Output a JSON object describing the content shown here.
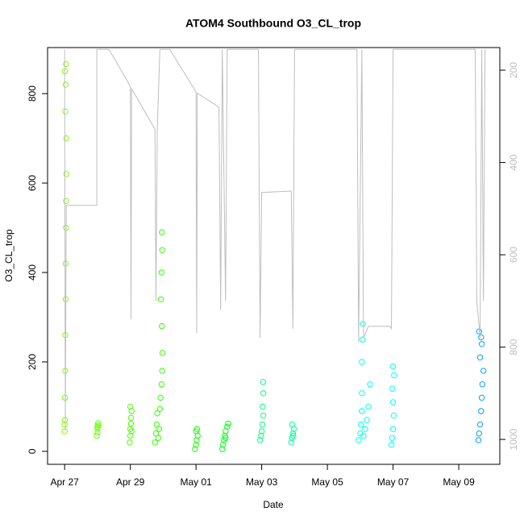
{
  "chart_data": {
    "type": "scatter",
    "title": "ATOM4 Southbound O3_CL_trop",
    "x_label": "Date",
    "y_label": "O3_CL_trop",
    "xlim": [
      -0.52,
      13.25
    ],
    "xticks": [
      {
        "value": 0,
        "label": "Apr 27"
      },
      {
        "value": 2,
        "label": "Apr 29"
      },
      {
        "value": 4,
        "label": "May 01"
      },
      {
        "value": 6,
        "label": "May 03"
      },
      {
        "value": 8,
        "label": "May 05"
      },
      {
        "value": 10,
        "label": "May 07"
      },
      {
        "value": 12,
        "label": "May 09"
      }
    ],
    "ylim": [
      -29,
      903
    ],
    "yticks": [
      0,
      200,
      400,
      600,
      800
    ],
    "y2lim": [
      1054,
      151
    ],
    "y2ticks": [
      200,
      400,
      600,
      800,
      1000
    ],
    "series": [
      {
        "color": "#80FF00",
        "x": [
          0,
          0,
          0.01,
          0.01,
          0.02,
          0.02,
          0.03,
          0.03,
          0.04,
          0.04,
          0.05,
          0.05,
          0.02,
          0.03,
          0.01,
          0.04
        ],
        "values": [
          45,
          60,
          70,
          120,
          180,
          260,
          340,
          420,
          500,
          560,
          620,
          700,
          760,
          820,
          850,
          866
        ]
      },
      {
        "color": "#66FF00",
        "x": [
          0.98,
          1.0,
          1.0,
          1.02,
          1.02,
          1.0
        ],
        "values": [
          35,
          42,
          50,
          58,
          63,
          55
        ]
      },
      {
        "color": "#4DFF00",
        "x": [
          1.98,
          2.0,
          2.0,
          2.02,
          2.02,
          2.04,
          2.0,
          2.04
        ],
        "values": [
          20,
          35,
          50,
          62,
          75,
          90,
          100,
          45
        ]
      },
      {
        "color": "#33FF00",
        "x": [
          2.75,
          2.78,
          2.8,
          2.82,
          2.85,
          2.88,
          2.9,
          2.92,
          2.95,
          2.97,
          2.98,
          2.96,
          2.93,
          2.95,
          2.97,
          2.96
        ],
        "values": [
          20,
          40,
          60,
          85,
          30,
          50,
          95,
          120,
          150,
          180,
          220,
          280,
          340,
          400,
          450,
          490
        ]
      },
      {
        "color": "#1AFF00",
        "x": [
          3.97,
          4.0,
          4.02,
          4.05,
          4.0,
          4.03
        ],
        "values": [
          5,
          15,
          25,
          35,
          45,
          50
        ]
      },
      {
        "color": "#00FF1A",
        "x": [
          4.8,
          4.82,
          4.85,
          4.88,
          4.9,
          4.95,
          4.98,
          4.9
        ],
        "values": [
          5,
          15,
          25,
          35,
          45,
          55,
          62,
          30
        ]
      },
      {
        "color": "#00FF80",
        "x": [
          5.95,
          5.98,
          6.0,
          6.02,
          6.05,
          6.03,
          6.05,
          6.04
        ],
        "values": [
          25,
          35,
          45,
          60,
          80,
          100,
          130,
          155
        ]
      },
      {
        "color": "#00FF99",
        "x": [
          6.9,
          6.92,
          6.95,
          6.98,
          6.93,
          6.96
        ],
        "values": [
          20,
          30,
          40,
          50,
          60,
          35
        ]
      },
      {
        "color": "#00FFEE",
        "x": [
          8.95,
          9.0,
          9.02,
          9.05,
          9.05,
          9.1,
          9.15,
          9.2,
          9.25,
          9.3,
          9.05,
          9.07,
          9.08
        ],
        "values": [
          25,
          40,
          60,
          90,
          130,
          35,
          50,
          70,
          100,
          150,
          200,
          250,
          285
        ]
      },
      {
        "color": "#00FFFF",
        "x": [
          9.95,
          9.97,
          10.0,
          10.02,
          10.0,
          9.98,
          10.03,
          10.0
        ],
        "values": [
          15,
          30,
          50,
          80,
          110,
          140,
          170,
          190
        ]
      },
      {
        "color": "#00A2FF",
        "x": [
          12.6,
          12.62,
          12.65,
          12.68,
          12.7,
          12.72,
          12.75,
          12.65,
          12.7,
          12.68,
          12.62
        ],
        "values": [
          25,
          40,
          60,
          90,
          120,
          150,
          180,
          210,
          240,
          255,
          268
        ]
      },
      {
        "type": "line",
        "axis": "y2",
        "color": "#BEBEBE",
        "x": [
          0,
          0.02,
          0.05,
          0.98,
          0.98,
          1.35,
          2.0,
          2.02,
          2.04,
          2.75,
          2.78,
          2.82,
          2.9,
          3.2,
          4.0,
          4.02,
          4.04,
          4.7,
          4.75,
          4.8,
          4.9,
          4.95,
          5.9,
          5.95,
          6.0,
          6.9,
          6.95,
          7.0,
          8.9,
          8.95,
          9.05,
          9.1,
          9.25,
          9.9,
          9.95,
          10.0,
          12.5,
          12.55,
          12.65,
          12.7,
          12.75,
          12.8
        ],
        "values": [
          155,
          980,
          493,
          493,
          155,
          155,
          235,
          740,
          240,
          328,
          700,
          330,
          155,
          155,
          247,
          770,
          250,
          280,
          720,
          155,
          700,
          155,
          155,
          780,
          465,
          462,
          760,
          155,
          155,
          790,
          155,
          780,
          755,
          755,
          760,
          155,
          155,
          700,
          780,
          155,
          700,
          155
        ]
      }
    ]
  }
}
